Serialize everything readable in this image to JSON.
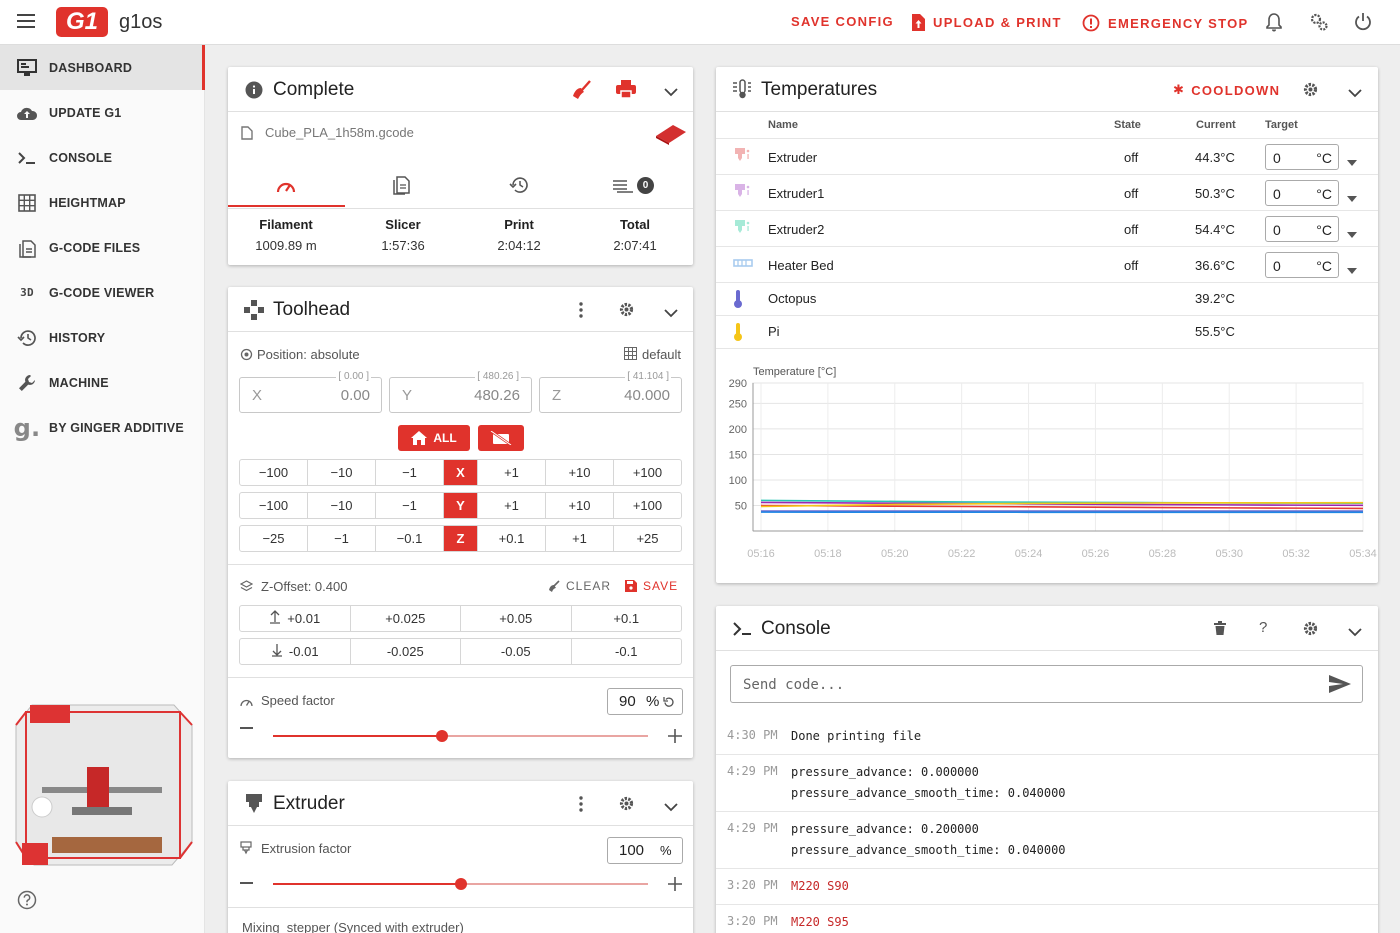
{
  "app": {
    "brand": "g1os",
    "logo_text": "G1"
  },
  "topbar": {
    "save_config": "SAVE CONFIG",
    "upload_print": "UPLOAD & PRINT",
    "emergency_stop": "EMERGENCY STOP"
  },
  "sidebar": {
    "items": [
      {
        "label": "DASHBOARD",
        "icon": "monitor-icon"
      },
      {
        "label": "UPDATE G1",
        "icon": "cloud-upload-icon"
      },
      {
        "label": "CONSOLE",
        "icon": "console-icon"
      },
      {
        "label": "HEIGHTMAP",
        "icon": "grid-icon"
      },
      {
        "label": "G-CODE FILES",
        "icon": "file-icon"
      },
      {
        "label": "G-CODE VIEWER",
        "icon": "3d-icon"
      },
      {
        "label": "HISTORY",
        "icon": "history-icon"
      },
      {
        "label": "MACHINE",
        "icon": "wrench-icon"
      },
      {
        "label": "BY GINGER ADDITIVE",
        "icon": "ginger-icon"
      }
    ]
  },
  "status": {
    "title": "Complete",
    "filename": "Cube_PLA_1h58m.gcode",
    "queue_count": "0",
    "stats": [
      {
        "label": "Filament",
        "value": "1009.89 m"
      },
      {
        "label": "Slicer",
        "value": "1:57:36"
      },
      {
        "label": "Print",
        "value": "2:04:12"
      },
      {
        "label": "Total",
        "value": "2:07:41"
      }
    ]
  },
  "toolhead": {
    "title": "Toolhead",
    "position_label": "Position: absolute",
    "profile": "default",
    "x": {
      "label": "X",
      "value": "0.00",
      "target": "[ 0.00 ]"
    },
    "y": {
      "label": "Y",
      "value": "480.26",
      "target": "[ 480.26 ]"
    },
    "z": {
      "label": "Z",
      "value": "40.000",
      "target": "[ 41.104 ]"
    },
    "home_all": "ALL",
    "x_row": [
      "−100",
      "−10",
      "−1",
      "X",
      "+1",
      "+10",
      "+100"
    ],
    "y_row": [
      "−100",
      "−10",
      "−1",
      "Y",
      "+1",
      "+10",
      "+100"
    ],
    "z_row": [
      "−25",
      "−1",
      "−0.1",
      "Z",
      "+0.1",
      "+1",
      "+25"
    ],
    "zoffset_label": "Z-Offset: 0.400",
    "clear": "CLEAR",
    "save": "SAVE",
    "zup": [
      "+0.01",
      "+0.025",
      "+0.05",
      "+0.1"
    ],
    "zdown": [
      "-0.01",
      "-0.025",
      "-0.05",
      "-0.1"
    ],
    "speed_label": "Speed factor",
    "speed_value": "90",
    "speed_unit": "%",
    "speed_fraction": 0.45
  },
  "extruder": {
    "title": "Extruder",
    "factor_label": "Extrusion factor",
    "factor_value": "100",
    "factor_unit": "%",
    "factor_fraction": 0.5,
    "mixing_label": "Mixing_stepper (Synced with extruder)"
  },
  "temperatures": {
    "title": "Temperatures",
    "cooldown": "COOLDOWN",
    "headers": {
      "name": "Name",
      "state": "State",
      "current": "Current",
      "target": "Target"
    },
    "rows": [
      {
        "name": "Extruder",
        "state": "off",
        "current": "44.3°C",
        "target": "0",
        "unit": "°C",
        "color": "#f2b3b3"
      },
      {
        "name": "Extruder1",
        "state": "off",
        "current": "50.3°C",
        "target": "0",
        "unit": "°C",
        "color": "#d9b3e6"
      },
      {
        "name": "Extruder2",
        "state": "off",
        "current": "54.4°C",
        "target": "0",
        "unit": "°C",
        "color": "#a6ead7"
      },
      {
        "name": "Heater Bed",
        "state": "off",
        "current": "36.6°C",
        "target": "0",
        "unit": "°C",
        "color": "#a8cbef"
      },
      {
        "name": "Octopus",
        "current": "39.2°C",
        "color": "#6a6ad0"
      },
      {
        "name": "Pi",
        "current": "55.5°C",
        "color": "#f5c518"
      }
    ]
  },
  "chart_data": {
    "type": "line",
    "ylabel": "Temperature [°C]",
    "ylim": [
      0,
      290
    ],
    "yticks": [
      290,
      250,
      200,
      150,
      100,
      50
    ],
    "x": [
      "05:16",
      "05:18",
      "05:20",
      "05:22",
      "05:24",
      "05:26",
      "05:28",
      "05:30",
      "05:32",
      "05:34"
    ],
    "series": [
      {
        "name": "Extruder2",
        "color": "#26c6b5",
        "values": [
          60,
          59,
          58,
          57,
          56.5,
          56,
          55.5,
          55,
          54.7,
          54.4
        ]
      },
      {
        "name": "Extruder1",
        "color": "#9c27b0",
        "values": [
          56,
          55.3,
          54.5,
          53.8,
          53,
          52.3,
          51.7,
          51.2,
          50.7,
          50.3
        ]
      },
      {
        "name": "Extruder",
        "color": "#e53935",
        "values": [
          50,
          49.3,
          48.6,
          48,
          47.4,
          46.6,
          45.9,
          45.3,
          44.8,
          44.3
        ]
      },
      {
        "name": "Pi",
        "color": "#f5c518",
        "values": [
          48,
          50,
          52,
          53,
          54,
          54.5,
          55,
          55.2,
          55.3,
          55.5
        ]
      },
      {
        "name": "Octopus",
        "color": "#6a6ad0",
        "values": [
          39,
          39.1,
          39.1,
          39.2,
          39.2,
          39.2,
          39.2,
          39.2,
          39.2,
          39.2
        ]
      },
      {
        "name": "Heater Bed",
        "color": "#1e88e5",
        "values": [
          37,
          36.9,
          36.8,
          36.8,
          36.7,
          36.7,
          36.6,
          36.6,
          36.6,
          36.6
        ]
      }
    ]
  },
  "console": {
    "title": "Console",
    "placeholder": "Send code...",
    "entries": [
      {
        "time": "4:30 PM",
        "lines": [
          "Done printing file"
        ],
        "red": false
      },
      {
        "time": "4:29 PM",
        "lines": [
          "pressure_advance: 0.000000",
          "pressure_advance_smooth_time: 0.040000"
        ],
        "red": false
      },
      {
        "time": "4:29 PM",
        "lines": [
          "pressure_advance: 0.200000",
          "pressure_advance_smooth_time: 0.040000"
        ],
        "red": false
      },
      {
        "time": "3:20 PM",
        "lines": [
          "M220 S90"
        ],
        "red": true
      },
      {
        "time": "3:20 PM",
        "lines": [
          "M220 S95"
        ],
        "red": true
      }
    ]
  }
}
